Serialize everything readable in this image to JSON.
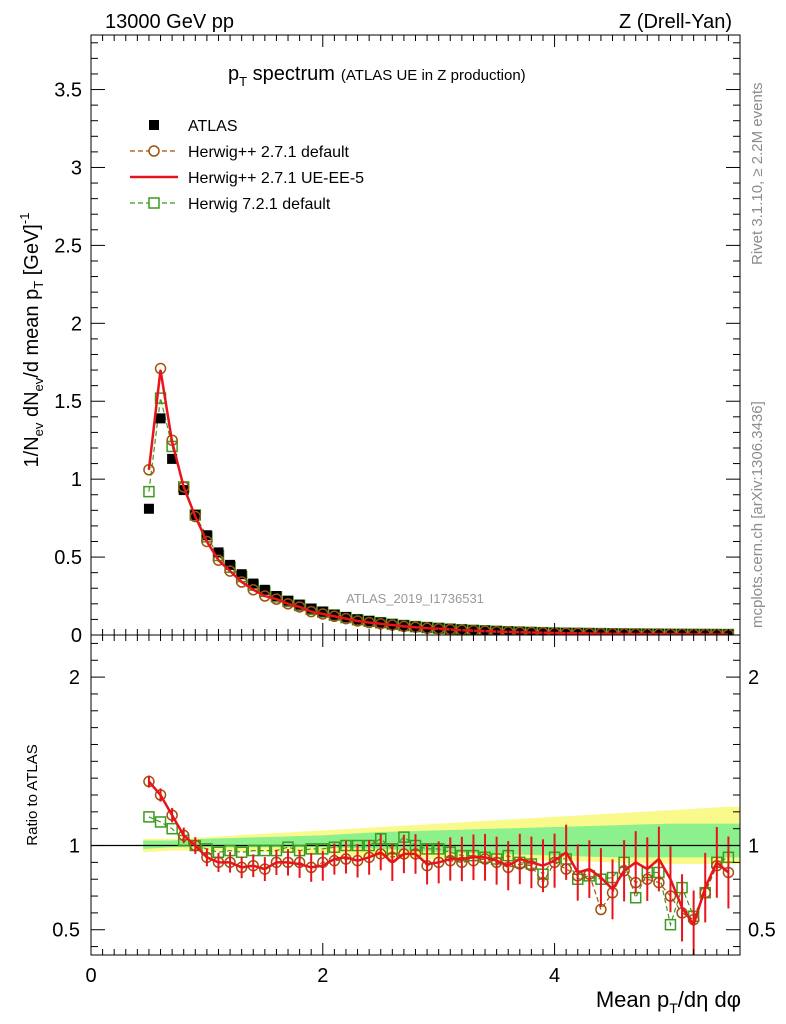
{
  "header": {
    "left": "13000 GeV pp",
    "right": "Z (Drell-Yan)"
  },
  "side_labels": {
    "rivet": "Rivet 3.1.10, ≥ 2.2M events",
    "mcplots": "mcplots.cern.ch [arXiv:1306.3436]"
  },
  "watermark": "ATLAS_2019_I1736531",
  "chart_data": [
    {
      "type": "line",
      "panel": "main",
      "title": {
        "main": "p",
        "sub": "T",
        "rest": " spectrum",
        "small": "(ATLAS UE in Z production)"
      },
      "ylabel": "1/N_ev dN_ev/d mean p_T [GeV]^-1",
      "xlim": [
        0,
        5.6
      ],
      "ylim": [
        0,
        3.85
      ],
      "yticks": [
        0,
        0.5,
        1,
        1.5,
        2,
        2.5,
        3,
        3.5
      ],
      "yticklabels": [
        "0",
        "0.5",
        "1",
        "1.5",
        "2",
        "2.5",
        "3",
        "3.5"
      ],
      "legend": [
        {
          "label": "ATLAS",
          "color": "#000000",
          "marker": "square-filled",
          "line": "none"
        },
        {
          "label": "Herwig++ 2.7.1 default",
          "color": "#a0520f",
          "marker": "circle-open",
          "line": "dashed"
        },
        {
          "label": "Herwig++ 2.7.1 UE-EE-5",
          "color": "#e8141a",
          "marker": "none",
          "line": "solid"
        },
        {
          "label": "Herwig 7.2.1 default",
          "color": "#3c9a1e",
          "marker": "square-open",
          "line": "dashed"
        }
      ],
      "x": [
        0.5,
        0.6,
        0.7,
        0.8,
        0.9,
        1.0,
        1.1,
        1.2,
        1.3,
        1.4,
        1.5,
        1.6,
        1.7,
        1.8,
        1.9,
        2.0,
        2.1,
        2.2,
        2.3,
        2.4,
        2.5,
        2.6,
        2.7,
        2.8,
        2.9,
        3.0,
        3.1,
        3.2,
        3.3,
        3.4,
        3.5,
        3.6,
        3.7,
        3.8,
        3.9,
        4.0,
        4.1,
        4.2,
        4.3,
        4.4,
        4.5,
        4.6,
        4.7,
        4.8,
        4.9,
        5.0,
        5.1,
        5.2,
        5.3,
        5.4,
        5.5
      ],
      "series": [
        {
          "name": "ATLAS",
          "values": [
            0.81,
            1.39,
            1.13,
            0.93,
            0.77,
            0.64,
            0.53,
            0.45,
            0.39,
            0.33,
            0.29,
            0.25,
            0.22,
            0.195,
            0.17,
            0.15,
            0.13,
            0.115,
            0.1,
            0.09,
            0.08,
            0.07,
            0.062,
            0.055,
            0.049,
            0.044,
            0.039,
            0.035,
            0.031,
            0.028,
            0.025,
            0.022,
            0.02,
            0.018,
            0.016,
            0.014,
            0.013,
            0.012,
            0.011,
            0.01,
            0.009,
            0.008,
            0.0075,
            0.007,
            0.0065,
            0.006,
            0.0055,
            0.005,
            0.0045,
            0.004,
            0.0035
          ]
        },
        {
          "name": "Herwig++ 2.7.1 default",
          "values": [
            1.06,
            1.71,
            1.25,
            0.95,
            0.76,
            0.6,
            0.48,
            0.41,
            0.34,
            0.29,
            0.25,
            0.23,
            0.2,
            0.18,
            0.15,
            0.135,
            0.12,
            0.105,
            0.09,
            0.08,
            0.072,
            0.064,
            0.055,
            0.05,
            0.043,
            0.04,
            0.035,
            0.031,
            0.028,
            0.025,
            0.022,
            0.02,
            0.018,
            0.016,
            0.0145,
            0.0128,
            0.0115,
            0.0105,
            0.0095,
            0.0085,
            0.0078,
            0.007,
            0.0065,
            0.006,
            0.0055,
            0.005,
            0.0045,
            0.004,
            0.0036,
            0.0032,
            0.0028
          ]
        },
        {
          "name": "Herwig++ 2.7.1 UE-EE-5",
          "values": [
            1.06,
            1.7,
            1.24,
            0.95,
            0.76,
            0.6,
            0.48,
            0.41,
            0.34,
            0.29,
            0.25,
            0.23,
            0.2,
            0.18,
            0.15,
            0.135,
            0.12,
            0.105,
            0.09,
            0.08,
            0.072,
            0.064,
            0.055,
            0.05,
            0.043,
            0.04,
            0.035,
            0.031,
            0.028,
            0.025,
            0.022,
            0.02,
            0.018,
            0.016,
            0.0145,
            0.0128,
            0.0115,
            0.0105,
            0.0095,
            0.0085,
            0.0078,
            0.007,
            0.0065,
            0.006,
            0.0055,
            0.005,
            0.0045,
            0.004,
            0.0036,
            0.0032,
            0.0028
          ]
        },
        {
          "name": "Herwig 7.2.1 default",
          "values": [
            0.92,
            1.52,
            1.21,
            0.95,
            0.77,
            0.63,
            0.51,
            0.435,
            0.375,
            0.32,
            0.28,
            0.245,
            0.215,
            0.19,
            0.165,
            0.147,
            0.128,
            0.112,
            0.098,
            0.088,
            0.079,
            0.069,
            0.061,
            0.054,
            0.048,
            0.043,
            0.038,
            0.034,
            0.03,
            0.027,
            0.024,
            0.021,
            0.019,
            0.017,
            0.015,
            0.013,
            0.012,
            0.011,
            0.01,
            0.009,
            0.008,
            0.0072,
            0.0067,
            0.0062,
            0.0058,
            0.0053,
            0.0048,
            0.0043,
            0.0039,
            0.0035,
            0.0031
          ]
        }
      ]
    },
    {
      "type": "line",
      "panel": "ratio",
      "ylabel": "Ratio to ATLAS",
      "xlabel": "Mean p_T/dη dφ",
      "xlim": [
        0,
        5.6
      ],
      "ylim": [
        0.35,
        2.25
      ],
      "yticks": [
        0.5,
        1,
        2
      ],
      "yticklabels": [
        "0.5",
        "1",
        "2"
      ],
      "xticks": [
        0,
        2,
        4
      ],
      "xticklabels": [
        "0",
        "2",
        "4"
      ],
      "x": [
        0.5,
        0.6,
        0.7,
        0.8,
        0.9,
        1.0,
        1.1,
        1.2,
        1.3,
        1.4,
        1.5,
        1.6,
        1.7,
        1.8,
        1.9,
        2.0,
        2.1,
        2.2,
        2.3,
        2.4,
        2.5,
        2.6,
        2.7,
        2.8,
        2.9,
        3.0,
        3.1,
        3.2,
        3.3,
        3.4,
        3.5,
        3.6,
        3.7,
        3.8,
        3.9,
        4.0,
        4.1,
        4.2,
        4.3,
        4.4,
        4.5,
        4.6,
        4.7,
        4.8,
        4.9,
        5.0,
        5.1,
        5.2,
        5.3,
        5.4,
        5.5
      ],
      "band_x": [
        0.45,
        0.7,
        1.0,
        1.5,
        2.0,
        2.5,
        3.0,
        3.5,
        4.0,
        4.5,
        5.0,
        5.5,
        5.6
      ],
      "band_yellow_low": [
        0.96,
        0.97,
        0.97,
        0.96,
        0.95,
        0.93,
        0.92,
        0.92,
        0.91,
        0.9,
        0.89,
        0.89,
        0.89
      ],
      "band_yellow_high": [
        1.04,
        1.04,
        1.05,
        1.07,
        1.09,
        1.11,
        1.13,
        1.15,
        1.17,
        1.19,
        1.21,
        1.23,
        1.23
      ],
      "band_green_low": [
        0.98,
        0.99,
        0.99,
        0.99,
        0.99,
        0.98,
        0.96,
        0.95,
        0.94,
        0.93,
        0.93,
        0.93,
        0.93
      ],
      "band_green_high": [
        1.03,
        1.03,
        1.04,
        1.05,
        1.06,
        1.08,
        1.09,
        1.1,
        1.11,
        1.12,
        1.13,
        1.13,
        1.13
      ],
      "series": [
        {
          "name": "Herwig++ 2.7.1 default",
          "values": [
            1.38,
            1.3,
            1.18,
            1.06,
            1.0,
            0.93,
            0.9,
            0.9,
            0.87,
            0.88,
            0.86,
            0.9,
            0.9,
            0.9,
            0.87,
            0.9,
            0.91,
            0.92,
            0.91,
            0.93,
            0.95,
            0.93,
            0.95,
            0.95,
            0.88,
            0.9,
            0.91,
            0.9,
            0.91,
            0.92,
            0.9,
            0.87,
            0.89,
            0.88,
            0.78,
            0.9,
            0.86,
            0.82,
            0.83,
            0.62,
            0.72,
            0.85,
            0.78,
            0.8,
            0.78,
            0.7,
            0.6,
            0.56,
            0.72,
            0.88,
            0.84
          ]
        },
        {
          "name": "Herwig++ 2.7.1 UE-EE-5",
          "values": [
            1.38,
            1.3,
            1.18,
            1.06,
            1.0,
            0.93,
            0.9,
            0.9,
            0.87,
            0.88,
            0.86,
            0.9,
            0.9,
            0.89,
            0.87,
            0.88,
            0.92,
            0.93,
            0.91,
            0.93,
            0.96,
            0.9,
            0.95,
            0.95,
            0.89,
            0.9,
            0.92,
            0.92,
            0.93,
            0.93,
            0.91,
            0.88,
            0.92,
            0.9,
            0.88,
            0.91,
            0.96,
            0.84,
            0.86,
            0.81,
            0.74,
            0.85,
            0.9,
            0.86,
            0.92,
            0.8,
            0.63,
            0.53,
            0.75,
            0.9,
            0.84
          ]
        },
        {
          "name": "Herwig 7.2.1 default",
          "values": [
            1.17,
            1.14,
            1.1,
            1.03,
            1.0,
            0.98,
            0.96,
            0.97,
            0.96,
            0.97,
            0.97,
            0.97,
            0.99,
            0.97,
            0.98,
            0.98,
            0.99,
            1.0,
            1.0,
            1.0,
            1.04,
            0.98,
            1.05,
            1.0,
            0.98,
            0.98,
            0.96,
            0.94,
            0.94,
            0.93,
            0.92,
            0.94,
            0.9,
            0.89,
            0.83,
            0.93,
            0.92,
            0.8,
            0.82,
            0.8,
            0.81,
            0.9,
            0.69,
            0.84,
            0.84,
            0.53,
            0.75,
            0.58,
            0.72,
            0.9,
            0.93
          ]
        }
      ]
    }
  ]
}
